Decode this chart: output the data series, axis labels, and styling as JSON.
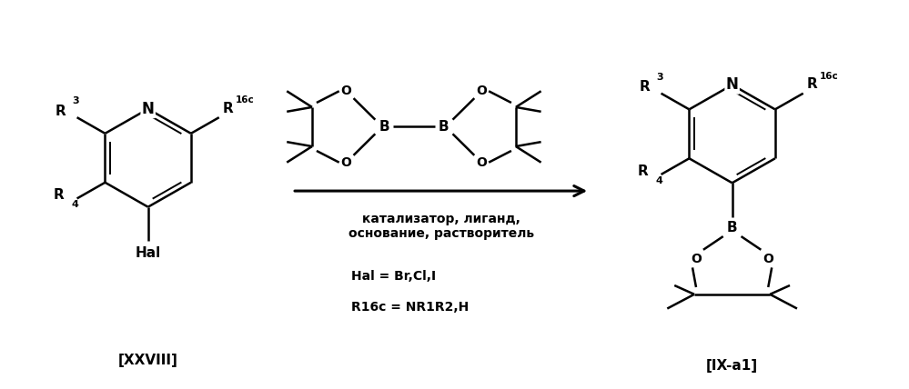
{
  "bg_color": "#ffffff",
  "line_color": "#000000",
  "figsize": [
    9.99,
    4.28
  ],
  "dpi": 100,
  "label_xxviii": "[XXVIII]",
  "label_ixa1": "[IX-a1]",
  "label_conditions": "катализатор, лиганд,\nоснование, растворитель",
  "label_hal": "Hal = Br,Cl,I",
  "label_r16c": "R16c = NR1R2,H"
}
